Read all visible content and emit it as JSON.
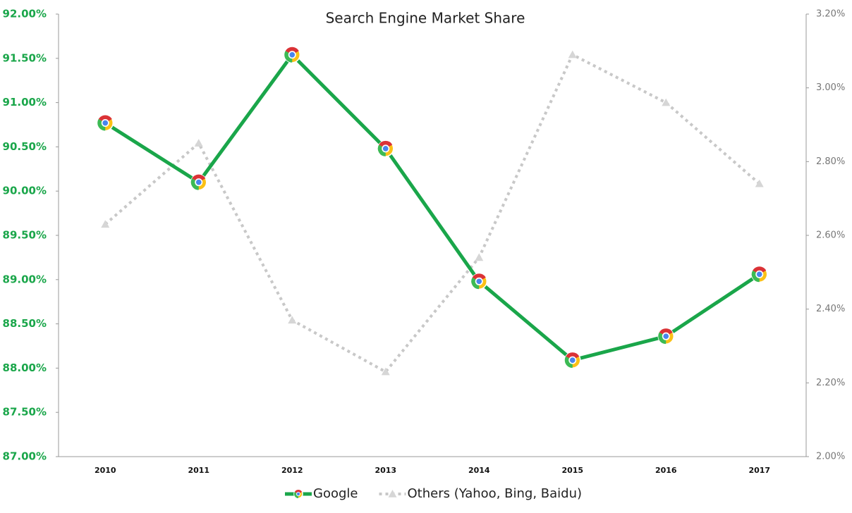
{
  "chart_data": {
    "type": "line",
    "title": "Search Engine Market Share",
    "categories": [
      "2010",
      "2011",
      "2012",
      "2013",
      "2014",
      "2015",
      "2016",
      "2017"
    ],
    "series": [
      {
        "name": "Google",
        "color": "#1aa64a",
        "values": [
          90.77,
          90.1,
          91.54,
          90.48,
          88.98,
          88.09,
          88.36,
          89.06
        ]
      },
      {
        "name": "Others (Yahoo, Bing, Baidu)",
        "color": "#c8c8c8",
        "axis": "y2",
        "values": [
          2.63,
          2.85,
          2.37,
          2.23,
          2.54,
          3.09,
          2.96,
          2.74
        ]
      }
    ],
    "ylim": [
      87,
      92
    ],
    "yticks": [
      {
        "value": 87,
        "label": "87.00%"
      },
      {
        "value": 87.5,
        "label": "87.50%"
      },
      {
        "value": 88,
        "label": "88.00%"
      },
      {
        "value": 88.5,
        "label": "88.50%"
      },
      {
        "value": 89,
        "label": "89.00%"
      },
      {
        "value": 89.5,
        "label": "89.50%"
      },
      {
        "value": 90,
        "label": "90.00%"
      },
      {
        "value": 90.5,
        "label": "90.50%"
      },
      {
        "value": 91,
        "label": "91.00%"
      },
      {
        "value": 91.5,
        "label": "91.50%"
      },
      {
        "value": 92,
        "label": "92.00%"
      }
    ],
    "y2lim": [
      2,
      3.2
    ],
    "y2ticks": [
      {
        "value": 2,
        "label": "2.00%"
      },
      {
        "value": 2.2,
        "label": "2.20%"
      },
      {
        "value": 2.4,
        "label": "2.40%"
      },
      {
        "value": 2.6,
        "label": "2.60%"
      },
      {
        "value": 2.8,
        "label": "2.80%"
      },
      {
        "value": 3,
        "label": "3.00%"
      },
      {
        "value": 3.2,
        "label": "3.20%"
      }
    ],
    "grid": false,
    "legend": "bottom"
  }
}
